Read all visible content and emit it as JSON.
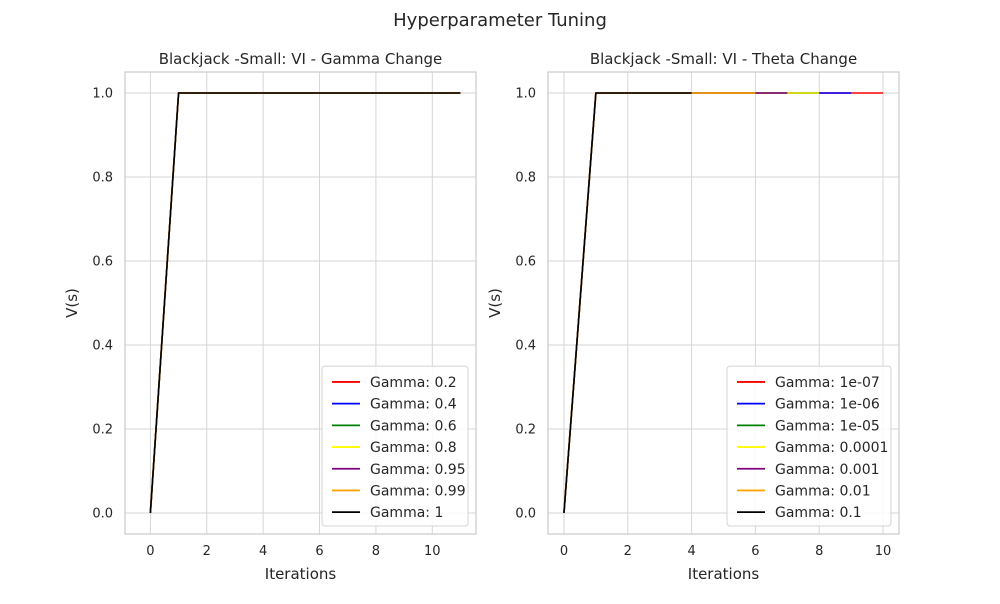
{
  "figure": {
    "suptitle": "Hyperparameter Tuning"
  },
  "chart_data": [
    {
      "type": "line",
      "title": "Blackjack -Small: VI - Gamma Change",
      "xlabel": "Iterations",
      "ylabel": "V(s)",
      "xlim": [
        -0.9,
        11.55
      ],
      "ylim": [
        -0.05,
        1.05
      ],
      "xticks": [
        0,
        2,
        4,
        6,
        8,
        10
      ],
      "yticks": [
        0.0,
        0.2,
        0.4,
        0.6,
        0.8,
        1.0
      ],
      "xtick_labels": [
        "0",
        "2",
        "4",
        "6",
        "8",
        "10"
      ],
      "ytick_labels": [
        "0.0",
        "0.2",
        "0.4",
        "0.6",
        "0.8",
        "1.0"
      ],
      "grid": true,
      "legend_position": "lower-right",
      "series": [
        {
          "name": "Gamma: 0.2",
          "color": "#ff0000",
          "x": [
            0,
            1,
            2,
            3,
            4,
            5,
            6,
            7,
            8,
            9,
            10,
            11
          ],
          "y": [
            0.0,
            1.0,
            1.0,
            1.0,
            1.0,
            1.0,
            1.0,
            1.0,
            1.0,
            1.0,
            1.0,
            1.0
          ]
        },
        {
          "name": "Gamma: 0.4",
          "color": "#0000ff",
          "x": [
            0,
            1,
            2,
            3,
            4,
            5,
            6,
            7,
            8,
            9,
            10,
            11
          ],
          "y": [
            0.0,
            1.0,
            1.0,
            1.0,
            1.0,
            1.0,
            1.0,
            1.0,
            1.0,
            1.0,
            1.0,
            1.0
          ]
        },
        {
          "name": "Gamma: 0.6",
          "color": "#008000",
          "x": [
            0,
            1,
            2,
            3,
            4,
            5,
            6,
            7,
            8,
            9,
            10,
            11
          ],
          "y": [
            0.0,
            1.0,
            1.0,
            1.0,
            1.0,
            1.0,
            1.0,
            1.0,
            1.0,
            1.0,
            1.0,
            1.0
          ]
        },
        {
          "name": "Gamma: 0.8",
          "color": "#ffff00",
          "x": [
            0,
            1,
            2,
            3,
            4,
            5,
            6,
            7,
            8,
            9,
            10,
            11
          ],
          "y": [
            0.0,
            1.0,
            1.0,
            1.0,
            1.0,
            1.0,
            1.0,
            1.0,
            1.0,
            1.0,
            1.0,
            1.0
          ]
        },
        {
          "name": "Gamma: 0.95",
          "color": "#800080",
          "x": [
            0,
            1,
            2,
            3,
            4,
            5,
            6,
            7,
            8,
            9,
            10,
            11
          ],
          "y": [
            0.0,
            1.0,
            1.0,
            1.0,
            1.0,
            1.0,
            1.0,
            1.0,
            1.0,
            1.0,
            1.0,
            1.0
          ]
        },
        {
          "name": "Gamma: 0.99",
          "color": "#ffa500",
          "x": [
            0,
            1,
            2,
            3,
            4,
            5,
            6,
            7,
            8,
            9,
            10,
            11
          ],
          "y": [
            0.0,
            1.0,
            1.0,
            1.0,
            1.0,
            1.0,
            1.0,
            1.0,
            1.0,
            1.0,
            1.0,
            1.0
          ]
        },
        {
          "name": "Gamma: 1",
          "color": "#000000",
          "x": [
            0,
            1,
            2,
            3,
            4,
            5,
            6,
            7,
            8,
            9,
            10,
            11
          ],
          "y": [
            0.0,
            1.0,
            1.0,
            1.0,
            1.0,
            1.0,
            1.0,
            1.0,
            1.0,
            1.0,
            1.0,
            1.0
          ]
        }
      ]
    },
    {
      "type": "line",
      "title": "Blackjack -Small: VI - Theta Change",
      "xlabel": "Iterations",
      "ylabel": "V(s)",
      "xlim": [
        -0.5,
        10.5
      ],
      "ylim": [
        -0.05,
        1.05
      ],
      "xticks": [
        0,
        2,
        4,
        6,
        8,
        10
      ],
      "yticks": [
        0.0,
        0.2,
        0.4,
        0.6,
        0.8,
        1.0
      ],
      "xtick_labels": [
        "0",
        "2",
        "4",
        "6",
        "8",
        "10"
      ],
      "ytick_labels": [
        "0.0",
        "0.2",
        "0.4",
        "0.6",
        "0.8",
        "1.0"
      ],
      "grid": true,
      "legend_position": "lower-right",
      "series": [
        {
          "name": "Gamma: 1e-07",
          "color": "#ff0000",
          "x": [
            0,
            1,
            2,
            3,
            4,
            5,
            6,
            7,
            8,
            9,
            10
          ],
          "y": [
            0.0,
            1.0,
            1.0,
            1.0,
            1.0,
            1.0,
            1.0,
            1.0,
            1.0,
            1.0,
            1.0
          ]
        },
        {
          "name": "Gamma: 1e-06",
          "color": "#0000ff",
          "x": [
            0,
            1,
            2,
            3,
            4,
            5,
            6,
            7,
            8,
            9
          ],
          "y": [
            0.0,
            1.0,
            1.0,
            1.0,
            1.0,
            1.0,
            1.0,
            1.0,
            1.0,
            1.0
          ]
        },
        {
          "name": "Gamma: 1e-05",
          "color": "#008000",
          "x": [
            0,
            1,
            2,
            3,
            4,
            5,
            6,
            7,
            8
          ],
          "y": [
            0.0,
            1.0,
            1.0,
            1.0,
            1.0,
            1.0,
            1.0,
            1.0,
            1.0
          ]
        },
        {
          "name": "Gamma: 0.0001",
          "color": "#ffff00",
          "x": [
            0,
            1,
            2,
            3,
            4,
            5,
            6,
            7,
            8
          ],
          "y": [
            0.0,
            1.0,
            1.0,
            1.0,
            1.0,
            1.0,
            1.0,
            1.0,
            1.0
          ]
        },
        {
          "name": "Gamma: 0.001",
          "color": "#800080",
          "x": [
            0,
            1,
            2,
            3,
            4,
            5,
            6,
            7
          ],
          "y": [
            0.0,
            1.0,
            1.0,
            1.0,
            1.0,
            1.0,
            1.0,
            1.0
          ]
        },
        {
          "name": "Gamma: 0.01",
          "color": "#ffa500",
          "x": [
            0,
            1,
            2,
            3,
            4,
            5,
            6
          ],
          "y": [
            0.0,
            1.0,
            1.0,
            1.0,
            1.0,
            1.0,
            1.0
          ]
        },
        {
          "name": "Gamma: 0.1",
          "color": "#000000",
          "x": [
            0,
            1,
            2,
            3,
            4
          ],
          "y": [
            0.0,
            1.0,
            1.0,
            1.0,
            1.0
          ]
        }
      ]
    }
  ]
}
